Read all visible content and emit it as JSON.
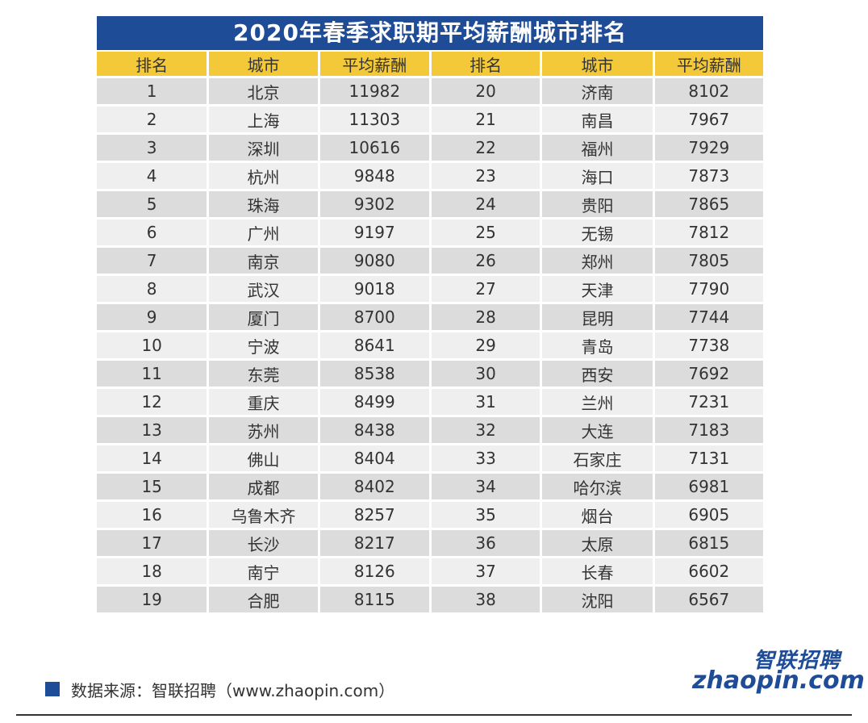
{
  "title": "2020年春季求职期平均薪酬城市排名",
  "headers": [
    "排名",
    "城市",
    "平均薪酬",
    "排名",
    "城市",
    "平均薪酬"
  ],
  "rows": [
    [
      "1",
      "北京",
      "11982",
      "20",
      "济南",
      "8102"
    ],
    [
      "2",
      "上海",
      "11303",
      "21",
      "南昌",
      "7967"
    ],
    [
      "3",
      "深圳",
      "10616",
      "22",
      "福州",
      "7929"
    ],
    [
      "4",
      "杭州",
      "9848",
      "23",
      "海口",
      "7873"
    ],
    [
      "5",
      "珠海",
      "9302",
      "24",
      "贵阳",
      "7865"
    ],
    [
      "6",
      "广州",
      "9197",
      "25",
      "无锡",
      "7812"
    ],
    [
      "7",
      "南京",
      "9080",
      "26",
      "郑州",
      "7805"
    ],
    [
      "8",
      "武汉",
      "9018",
      "27",
      "天津",
      "7790"
    ],
    [
      "9",
      "厦门",
      "8700",
      "28",
      "昆明",
      "7744"
    ],
    [
      "10",
      "宁波",
      "8641",
      "29",
      "青岛",
      "7738"
    ],
    [
      "11",
      "东莞",
      "8538",
      "30",
      "西安",
      "7692"
    ],
    [
      "12",
      "重庆",
      "8499",
      "31",
      "兰州",
      "7231"
    ],
    [
      "13",
      "苏州",
      "8438",
      "32",
      "大连",
      "7183"
    ],
    [
      "14",
      "佛山",
      "8404",
      "33",
      "石家庄",
      "7131"
    ],
    [
      "15",
      "成都",
      "8402",
      "34",
      "哈尔滨",
      "6981"
    ],
    [
      "16",
      "乌鲁木齐",
      "8257",
      "35",
      "烟台",
      "6905"
    ],
    [
      "17",
      "长沙",
      "8217",
      "36",
      "太原",
      "6815"
    ],
    [
      "18",
      "南宁",
      "8126",
      "37",
      "长春",
      "6602"
    ],
    [
      "19",
      "合肥",
      "8115",
      "38",
      "沈阳",
      "6567"
    ]
  ],
  "footer": {
    "source": "数据来源：智联招聘（www.zhaopin.com）"
  },
  "logo": {
    "cn": "智联招聘",
    "en": "zhaopin.com"
  },
  "colors": {
    "title_bg": "#1e4c96",
    "header_bg": "#f3c93a",
    "row_dark": "#dcdcdc",
    "row_light": "#efefef"
  }
}
